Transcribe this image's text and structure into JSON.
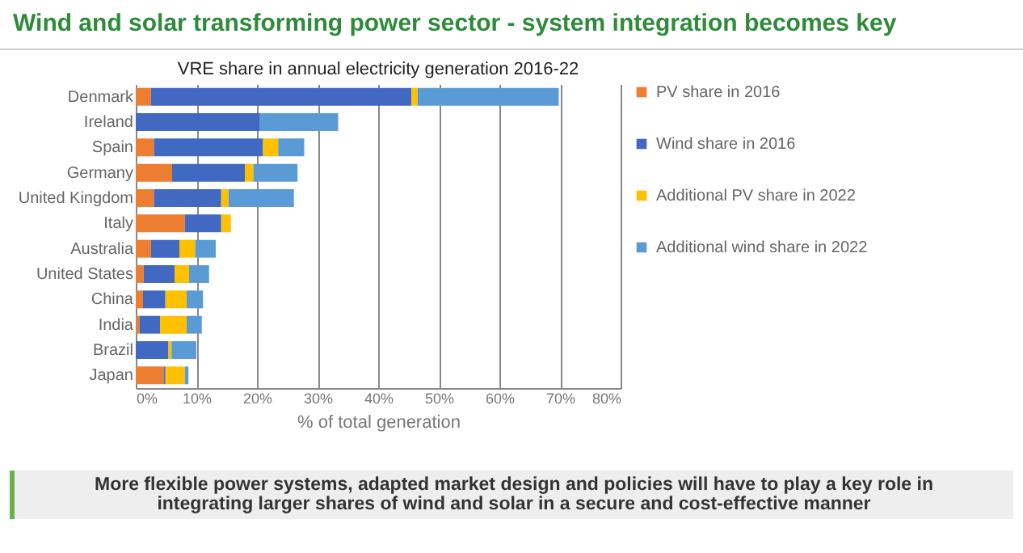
{
  "chart_data": {
    "type": "bar",
    "orientation": "horizontal",
    "stacked": true,
    "title": "Wind and solar transforming power sector - system integration becomes key",
    "subtitle": "VRE share in annual electricity generation 2016-22",
    "xlabel": "% of total generation",
    "categories": [
      "Denmark",
      "Ireland",
      "Spain",
      "Germany",
      "United Kingdom",
      "Italy",
      "Australia",
      "United States",
      "China",
      "India",
      "Brazil",
      "Japan"
    ],
    "series": [
      {
        "name": "PV share in 2016",
        "color": "#ed7d31",
        "values": [
          2.5,
          0,
          3,
          6,
          3,
          8.1,
          2.5,
          1.3,
          1.2,
          0.6,
          0,
          4.6
        ]
      },
      {
        "name": "Wind share in 2016",
        "color": "#4169c1",
        "values": [
          43,
          20.4,
          18,
          12,
          11.1,
          6,
          4.7,
          5.1,
          3.7,
          3.4,
          5.4,
          0.3
        ]
      },
      {
        "name": "Additional PV share in 2022",
        "color": "#ffc000",
        "values": [
          1,
          0,
          2.5,
          1.4,
          1.2,
          1.6,
          2.6,
          2.4,
          3.5,
          4.4,
          0.5,
          3.2
        ]
      },
      {
        "name": "Additional wind share in 2022",
        "color": "#5b9bd5",
        "values": [
          23.3,
          13,
          4.3,
          7.3,
          10.8,
          0,
          3.4,
          3.3,
          2.7,
          2.5,
          4.1,
          0.6
        ]
      }
    ],
    "xlim": [
      0,
      80
    ],
    "xticks": [
      {
        "value": 0,
        "label": "0%"
      },
      {
        "value": 10,
        "label": "10%"
      },
      {
        "value": 20,
        "label": "20%"
      },
      {
        "value": 30,
        "label": "30%"
      },
      {
        "value": 40,
        "label": "40%"
      },
      {
        "value": 50,
        "label": "50%"
      },
      {
        "value": 60,
        "label": "60%"
      },
      {
        "value": 70,
        "label": "70%"
      },
      {
        "value": 80,
        "label": "80%"
      }
    ],
    "grid": "x",
    "legend": "right",
    "annotations": [
      "More flexible power systems, adapted market design and policies will have to play a key role in integrating larger shares of wind and solar in a secure and cost-effective manner"
    ]
  }
}
